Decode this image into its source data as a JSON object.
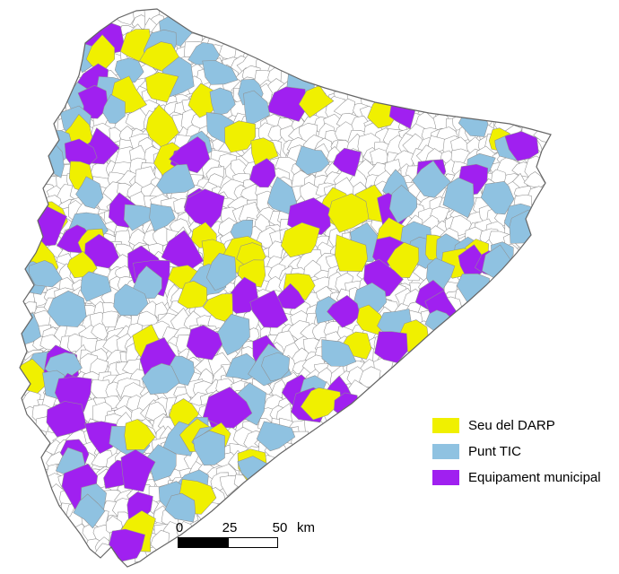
{
  "legend": {
    "items": [
      {
        "label": "Seu del DARP",
        "color": "#f0f000"
      },
      {
        "label": "Punt TIC",
        "color": "#8fc2e1"
      },
      {
        "label": "Equipament municipal",
        "color": "#a020f0"
      }
    ]
  },
  "scalebar": {
    "ticks": [
      "0",
      "25",
      "50"
    ],
    "unit": "km"
  },
  "map_colors": {
    "land": "#ffffff",
    "cell_border": "#909090",
    "outline": "#666666",
    "background": "#ffffff"
  }
}
